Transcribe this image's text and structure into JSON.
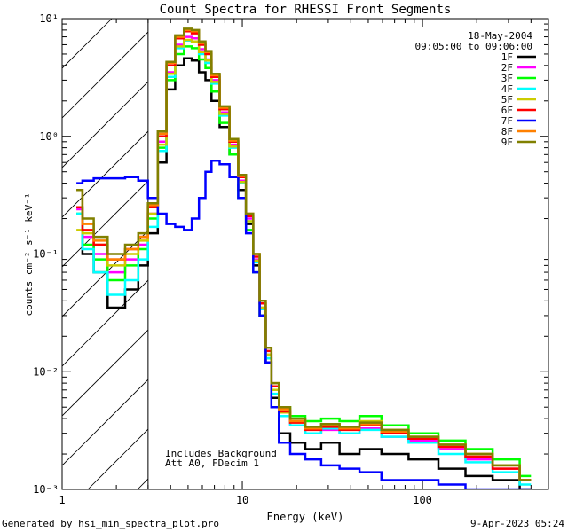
{
  "chart_data": {
    "type": "line",
    "title": "Count Spectra for RHESSI Front Segments",
    "xlabel": "Energy (keV)",
    "ylabel": "counts cm⁻² s⁻¹ keV⁻¹",
    "xscale": "log",
    "yscale": "log",
    "xlim": [
      1,
      500
    ],
    "ylim": [
      0.001,
      10
    ],
    "x_ticks": [
      {
        "value": 1,
        "label": "1"
      },
      {
        "value": 10,
        "label": "10"
      },
      {
        "value": 100,
        "label": "100"
      }
    ],
    "y_ticks": [
      {
        "value": 0.001,
        "label": "10⁻³"
      },
      {
        "value": 0.01,
        "label": "10⁻²"
      },
      {
        "value": 0.1,
        "label": "10⁻¹"
      },
      {
        "value": 1,
        "label": "10⁰"
      },
      {
        "value": 10,
        "label": "10¹"
      }
    ],
    "legend_position": "top-right",
    "date": "18-May-2004",
    "time_range": "09:05:00 to 09:06:00",
    "annotations": [
      "Includes Background",
      "Att A0, FDecim 1"
    ],
    "hatched_region_x": [
      1,
      3
    ],
    "series": [
      {
        "name": "1F",
        "color": "#000000",
        "x": [
          1.2,
          1.4,
          1.6,
          2.0,
          2.5,
          2.8,
          3.2,
          3.6,
          4.0,
          4.5,
          5.0,
          5.5,
          6.0,
          6.5,
          7.0,
          8.0,
          9.0,
          10.0,
          11.0,
          12.0,
          13.0,
          14.0,
          15.0,
          17.0,
          20.0,
          25.0,
          30.0,
          40.0,
          50.0,
          70.0,
          100.0,
          150.0,
          200.0,
          300.0,
          400.0
        ],
        "y": [
          0.25,
          0.1,
          0.07,
          0.035,
          0.05,
          0.08,
          0.15,
          0.6,
          2.5,
          4.0,
          4.6,
          4.4,
          3.5,
          3.0,
          2.0,
          1.2,
          0.7,
          0.35,
          0.18,
          0.08,
          0.03,
          0.012,
          0.006,
          0.003,
          0.0025,
          0.0022,
          0.0025,
          0.002,
          0.0022,
          0.002,
          0.0018,
          0.0015,
          0.0013,
          0.0012,
          0.001
        ]
      },
      {
        "name": "2F",
        "color": "#ff00ff",
        "x": [
          1.2,
          1.4,
          1.6,
          2.0,
          2.5,
          2.8,
          3.2,
          3.6,
          4.0,
          4.5,
          5.0,
          5.5,
          6.0,
          6.5,
          7.0,
          8.0,
          9.0,
          10.0,
          11.0,
          12.0,
          13.0,
          14.0,
          15.0,
          17.0,
          20.0,
          25.0,
          30.0,
          40.0,
          50.0,
          70.0,
          100.0,
          150.0,
          200.0,
          300.0,
          400.0
        ],
        "y": [
          0.24,
          0.14,
          0.1,
          0.07,
          0.09,
          0.12,
          0.22,
          0.9,
          3.5,
          6.0,
          7.0,
          6.8,
          5.5,
          4.5,
          3.0,
          1.6,
          0.85,
          0.42,
          0.2,
          0.09,
          0.035,
          0.014,
          0.007,
          0.0045,
          0.0035,
          0.003,
          0.0032,
          0.003,
          0.0033,
          0.0028,
          0.0026,
          0.0022,
          0.0018,
          0.0015,
          0.0012
        ]
      },
      {
        "name": "3F",
        "color": "#00ff00",
        "x": [
          1.2,
          1.4,
          1.6,
          2.0,
          2.5,
          2.8,
          3.2,
          3.6,
          4.0,
          4.5,
          5.0,
          5.5,
          6.0,
          6.5,
          7.0,
          8.0,
          9.0,
          10.0,
          11.0,
          12.0,
          13.0,
          14.0,
          15.0,
          17.0,
          20.0,
          25.0,
          30.0,
          40.0,
          50.0,
          70.0,
          100.0,
          150.0,
          200.0,
          300.0,
          400.0
        ],
        "y": [
          0.22,
          0.12,
          0.09,
          0.06,
          0.08,
          0.11,
          0.2,
          0.8,
          3.0,
          5.0,
          5.8,
          5.6,
          4.5,
          3.8,
          2.4,
          1.3,
          0.7,
          0.3,
          0.16,
          0.07,
          0.03,
          0.013,
          0.007,
          0.005,
          0.0042,
          0.0038,
          0.004,
          0.0038,
          0.0042,
          0.0035,
          0.003,
          0.0026,
          0.0022,
          0.0018,
          0.0013
        ]
      },
      {
        "name": "4F",
        "color": "#00ffff",
        "x": [
          1.2,
          1.4,
          1.6,
          2.0,
          2.5,
          2.8,
          3.2,
          3.6,
          4.0,
          4.5,
          5.0,
          5.5,
          6.0,
          6.5,
          7.0,
          8.0,
          9.0,
          10.0,
          11.0,
          12.0,
          13.0,
          14.0,
          15.0,
          17.0,
          20.0,
          25.0,
          30.0,
          40.0,
          50.0,
          70.0,
          100.0,
          150.0,
          200.0,
          300.0,
          400.0
        ],
        "y": [
          0.22,
          0.11,
          0.07,
          0.045,
          0.06,
          0.09,
          0.17,
          0.75,
          3.2,
          5.6,
          6.5,
          6.3,
          5.0,
          4.2,
          2.8,
          1.5,
          0.8,
          0.4,
          0.19,
          0.085,
          0.034,
          0.013,
          0.0065,
          0.0042,
          0.0035,
          0.003,
          0.0033,
          0.003,
          0.0032,
          0.0028,
          0.0025,
          0.002,
          0.0017,
          0.0014,
          0.0011
        ]
      },
      {
        "name": "5F",
        "color": "#cccc00",
        "x": [
          1.2,
          1.4,
          1.6,
          2.0,
          2.5,
          2.8,
          3.2,
          3.6,
          4.0,
          4.5,
          5.0,
          5.5,
          6.0,
          6.5,
          7.0,
          8.0,
          9.0,
          10.0,
          11.0,
          12.0,
          13.0,
          14.0,
          15.0,
          17.0,
          20.0,
          25.0,
          30.0,
          40.0,
          50.0,
          70.0,
          100.0,
          150.0,
          200.0,
          300.0,
          400.0
        ],
        "y": [
          0.16,
          0.15,
          0.12,
          0.08,
          0.1,
          0.13,
          0.22,
          0.85,
          3.4,
          5.8,
          6.6,
          6.4,
          5.2,
          4.4,
          2.9,
          1.55,
          0.82,
          0.41,
          0.19,
          0.088,
          0.035,
          0.014,
          0.007,
          0.0045,
          0.0038,
          0.0034,
          0.0036,
          0.0034,
          0.0038,
          0.0032,
          0.0028,
          0.0024,
          0.002,
          0.0016,
          0.0012
        ]
      },
      {
        "name": "6F",
        "color": "#ff0000",
        "x": [
          1.2,
          1.4,
          1.6,
          2.0,
          2.5,
          2.8,
          3.2,
          3.6,
          4.0,
          4.5,
          5.0,
          5.5,
          6.0,
          6.5,
          7.0,
          8.0,
          9.0,
          10.0,
          11.0,
          12.0,
          13.0,
          14.0,
          15.0,
          17.0,
          20.0,
          25.0,
          30.0,
          40.0,
          50.0,
          70.0,
          100.0,
          150.0,
          200.0,
          300.0,
          400.0
        ],
        "y": [
          0.25,
          0.16,
          0.12,
          0.09,
          0.11,
          0.14,
          0.25,
          1.0,
          4.0,
          6.8,
          7.8,
          7.5,
          6.0,
          5.0,
          3.2,
          1.7,
          0.9,
          0.45,
          0.21,
          0.095,
          0.038,
          0.015,
          0.0075,
          0.0046,
          0.0037,
          0.0032,
          0.0034,
          0.0032,
          0.0035,
          0.003,
          0.0027,
          0.0023,
          0.0019,
          0.0015,
          0.0012
        ]
      },
      {
        "name": "7F",
        "color": "#0000ff",
        "x": [
          1.2,
          1.4,
          1.6,
          2.0,
          2.5,
          2.8,
          3.2,
          3.6,
          4.0,
          4.5,
          5.0,
          5.5,
          6.0,
          6.5,
          7.0,
          8.0,
          9.0,
          10.0,
          11.0,
          12.0,
          13.0,
          14.0,
          15.0,
          17.0,
          20.0,
          25.0,
          30.0,
          40.0,
          50.0,
          70.0,
          100.0,
          150.0,
          200.0,
          300.0,
          400.0
        ],
        "y": [
          0.4,
          0.42,
          0.44,
          0.44,
          0.45,
          0.42,
          0.3,
          0.22,
          0.18,
          0.17,
          0.16,
          0.2,
          0.3,
          0.5,
          0.62,
          0.58,
          0.45,
          0.3,
          0.15,
          0.07,
          0.03,
          0.012,
          0.005,
          0.0025,
          0.002,
          0.0018,
          0.0016,
          0.0015,
          0.0014,
          0.0012,
          0.0012,
          0.0011,
          0.001,
          0.001,
          0.001
        ]
      },
      {
        "name": "8F",
        "color": "#ff8000",
        "x": [
          1.2,
          1.4,
          1.6,
          2.0,
          2.5,
          2.8,
          3.2,
          3.6,
          4.0,
          4.5,
          5.0,
          5.5,
          6.0,
          6.5,
          7.0,
          8.0,
          9.0,
          10.0,
          11.0,
          12.0,
          13.0,
          14.0,
          15.0,
          17.0,
          20.0,
          25.0,
          30.0,
          40.0,
          50.0,
          70.0,
          100.0,
          150.0,
          200.0,
          300.0,
          400.0
        ],
        "y": [
          0.35,
          0.18,
          0.13,
          0.09,
          0.11,
          0.14,
          0.26,
          1.05,
          4.2,
          7.0,
          8.0,
          7.8,
          6.2,
          5.2,
          3.3,
          1.75,
          0.92,
          0.46,
          0.22,
          0.1,
          0.04,
          0.016,
          0.008,
          0.0048,
          0.0038,
          0.0033,
          0.0035,
          0.0033,
          0.0036,
          0.0031,
          0.0028,
          0.0024,
          0.002,
          0.0016,
          0.0012
        ]
      },
      {
        "name": "9F",
        "color": "#808000",
        "x": [
          1.2,
          1.4,
          1.6,
          2.0,
          2.5,
          2.8,
          3.2,
          3.6,
          4.0,
          4.5,
          5.0,
          5.5,
          6.0,
          6.5,
          7.0,
          8.0,
          9.0,
          10.0,
          11.0,
          12.0,
          13.0,
          14.0,
          15.0,
          17.0,
          20.0,
          25.0,
          30.0,
          40.0,
          50.0,
          70.0,
          100.0,
          150.0,
          200.0,
          300.0,
          400.0
        ],
        "y": [
          0.35,
          0.2,
          0.14,
          0.1,
          0.12,
          0.15,
          0.27,
          1.1,
          4.3,
          7.2,
          8.2,
          8.0,
          6.4,
          5.3,
          3.4,
          1.8,
          0.95,
          0.47,
          0.22,
          0.1,
          0.04,
          0.016,
          0.008,
          0.005,
          0.004,
          0.0034,
          0.0036,
          0.0034,
          0.0037,
          0.0032,
          0.0028,
          0.0024,
          0.002,
          0.0016,
          0.0012
        ]
      }
    ]
  },
  "footer": {
    "generated_by": "Generated by hsi_min_spectra_plot.pro",
    "timestamp": "9-Apr-2023 05:24"
  }
}
